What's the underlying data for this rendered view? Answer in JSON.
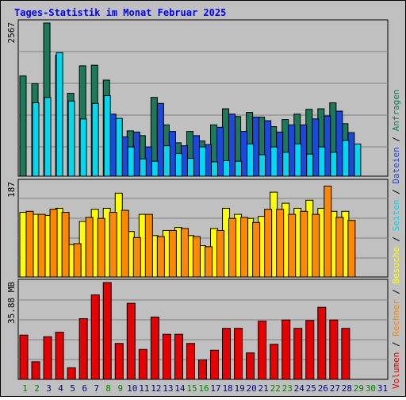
{
  "chart_data": [
    {
      "type": "bar",
      "title": "Tages-Statistik im Monat Februar 2025",
      "ymax_label": "2567",
      "ylim": [
        0,
        2567
      ],
      "categories": [
        "1",
        "2",
        "3",
        "4",
        "5",
        "6",
        "7",
        "8",
        "9",
        "10",
        "11",
        "12",
        "13",
        "14",
        "15",
        "16",
        "17",
        "18",
        "19",
        "20",
        "21",
        "22",
        "23",
        "24",
        "25",
        "26",
        "27",
        "28",
        "29",
        "30",
        "31"
      ],
      "weekend_days": [
        "1",
        "2",
        "8",
        "9",
        "15",
        "16",
        "22",
        "23",
        "29",
        "30"
      ],
      "series": [
        {
          "name": "Anfragen",
          "color": "#1a7a5a",
          "values": [
            1680,
            1550,
            2567,
            2030,
            1390,
            1850,
            1860,
            1610,
            750,
            760,
            680,
            1320,
            860,
            560,
            750,
            590,
            860,
            1130,
            1000,
            1070,
            990,
            830,
            950,
            1040,
            1120,
            1130,
            1230,
            880,
            0,
            0,
            0
          ]
        },
        {
          "name": "Dateien",
          "color": "#1e47e0",
          "values": [
            0,
            0,
            0,
            0,
            0,
            0,
            0,
            1040,
            660,
            740,
            490,
            1220,
            750,
            510,
            680,
            530,
            820,
            1040,
            750,
            990,
            930,
            740,
            860,
            860,
            960,
            1010,
            1090,
            730,
            0,
            0,
            0
          ]
        },
        {
          "name": "Seiten",
          "color": "#00d8f0",
          "values": [
            1230,
            1320,
            2070,
            1260,
            960,
            1220,
            1350,
            970,
            490,
            290,
            250,
            510,
            380,
            300,
            490,
            240,
            260,
            250,
            540,
            360,
            490,
            400,
            540,
            370,
            490,
            400,
            600,
            540,
            0,
            0,
            0
          ]
        }
      ]
    },
    {
      "type": "bar",
      "ymax_label": "187",
      "ylim": [
        0,
        187
      ],
      "categories": [
        "1",
        "2",
        "3",
        "4",
        "5",
        "6",
        "7",
        "8",
        "9",
        "10",
        "11",
        "12",
        "13",
        "14",
        "15",
        "16",
        "17",
        "18",
        "19",
        "20",
        "21",
        "22",
        "23",
        "24",
        "25",
        "26",
        "27",
        "28",
        "29",
        "30",
        "31"
      ],
      "series": [
        {
          "name": "Besuche",
          "color": "#ffff00",
          "values": [
            128,
            124,
            122,
            136,
            64,
            110,
            134,
            136,
            166,
            90,
            124,
            82,
            92,
            98,
            82,
            62,
            96,
            136,
            124,
            116,
            120,
            168,
            146,
            136,
            152,
            136,
            130,
            130,
            0,
            0,
            0
          ]
        },
        {
          "name": "Rechner",
          "color": "#ff8800",
          "values": [
            130,
            124,
            134,
            128,
            66,
            118,
            116,
            128,
            132,
            78,
            124,
            80,
            92,
            96,
            80,
            60,
            92,
            116,
            118,
            108,
            134,
            134,
            124,
            130,
            124,
            180,
            118,
            112,
            0,
            0,
            0
          ]
        }
      ]
    },
    {
      "type": "bar",
      "ymax_label": "35.88 MB",
      "ylim": [
        0,
        35.88
      ],
      "categories": [
        "1",
        "2",
        "3",
        "4",
        "5",
        "6",
        "7",
        "8",
        "9",
        "10",
        "11",
        "12",
        "13",
        "14",
        "15",
        "16",
        "17",
        "18",
        "19",
        "20",
        "21",
        "22",
        "23",
        "24",
        "25",
        "26",
        "27",
        "28",
        "29",
        "30",
        "31"
      ],
      "series": [
        {
          "name": "Volumen",
          "color": "#e80000",
          "values": [
            16.4,
            6.5,
            15.8,
            17.5,
            4.3,
            22.5,
            31.3,
            35.88,
            13.3,
            28.2,
            11.1,
            23.1,
            16.7,
            16.7,
            13.3,
            7.2,
            10.8,
            18.9,
            18.9,
            9.8,
            21.6,
            13.0,
            22.0,
            18.9,
            21.8,
            26.7,
            22.0,
            18.9,
            0,
            0,
            0
          ]
        }
      ]
    }
  ],
  "legend_right": [
    "Volumen",
    "Rechner",
    "Besuche",
    "Seiten",
    "Dateien",
    "Anfragen"
  ],
  "colors": {
    "background": "#c0c0c0",
    "title": "#0000ff",
    "weekday_label": "#000080",
    "weekend_label": "#008000"
  }
}
